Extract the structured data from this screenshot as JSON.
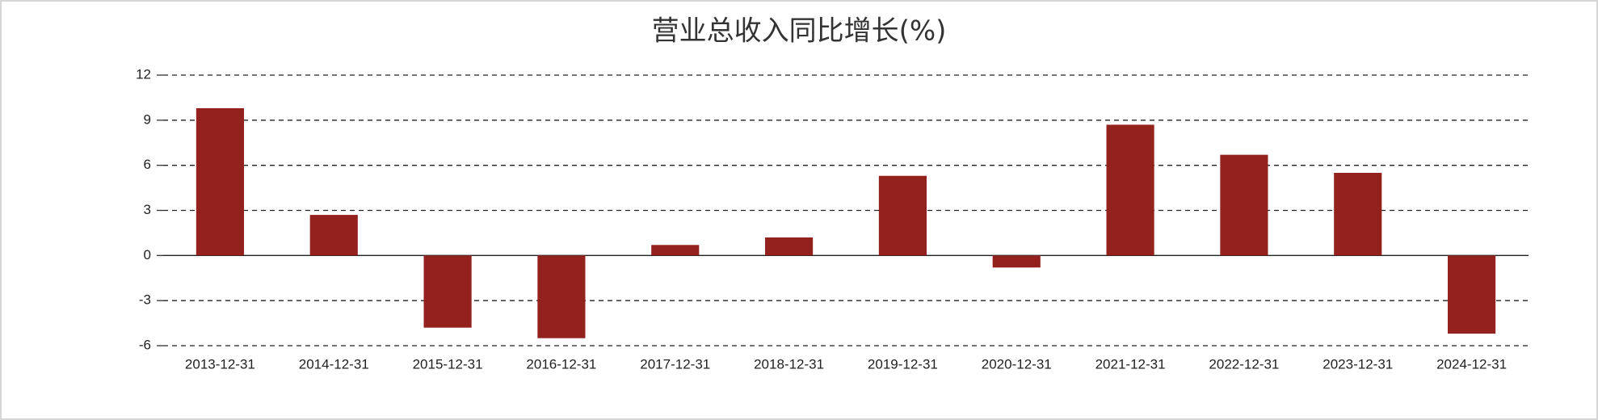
{
  "chart_data": {
    "type": "bar",
    "title": "营业总收入同比增长(%)",
    "categories": [
      "2013-12-31",
      "2014-12-31",
      "2015-12-31",
      "2016-12-31",
      "2017-12-31",
      "2018-12-31",
      "2019-12-31",
      "2020-12-31",
      "2021-12-31",
      "2022-12-31",
      "2023-12-31",
      "2024-12-31"
    ],
    "values": [
      9.8,
      2.7,
      -4.8,
      -5.5,
      0.7,
      1.2,
      5.3,
      -0.8,
      8.7,
      6.7,
      5.5,
      -5.2
    ],
    "color": "#93221f",
    "ylim": [
      -6,
      12
    ],
    "yticks": [
      -6,
      -3,
      0,
      3,
      6,
      9,
      12
    ],
    "grid": true
  }
}
